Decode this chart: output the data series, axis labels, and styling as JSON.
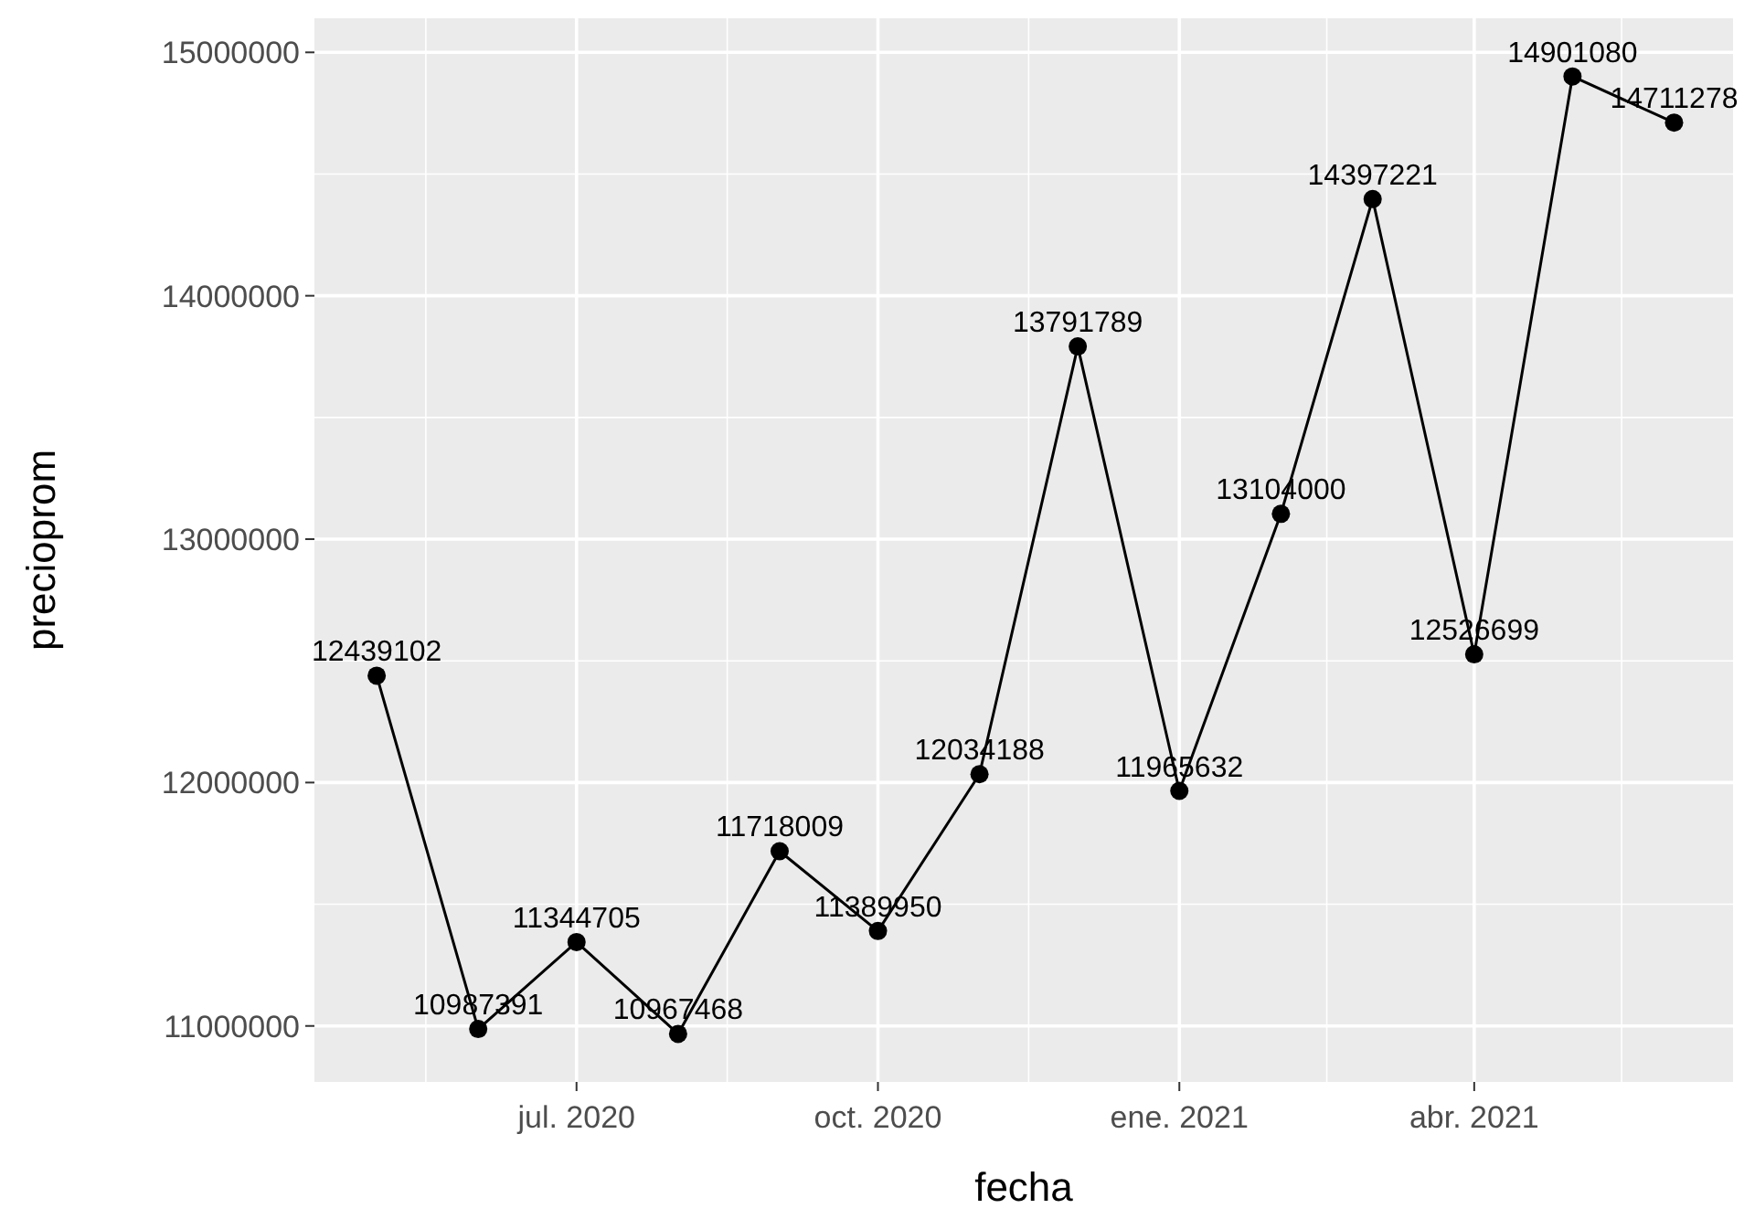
{
  "chart_data": {
    "type": "line",
    "xlabel": "fecha",
    "ylabel": "precioprom",
    "x": [
      "2020-05-01",
      "2020-06-01",
      "2020-07-01",
      "2020-08-01",
      "2020-09-01",
      "2020-10-01",
      "2020-11-01",
      "2020-12-01",
      "2021-01-01",
      "2021-02-01",
      "2021-03-01",
      "2021-04-01",
      "2021-05-01",
      "2021-06-01"
    ],
    "series": [
      {
        "color": "#000000",
        "values": [
          12439102,
          10987391,
          11344705,
          10967468,
          11718009,
          11389950,
          12034188,
          13791789,
          11965632,
          13104000,
          14397221,
          12526699,
          14901080,
          14711278
        ]
      }
    ],
    "xlim": [
      "2020-04-12",
      "2021-06-19"
    ],
    "xticks": [
      {
        "value": "2020-07-01",
        "label": "jul. 2020"
      },
      {
        "value": "2020-10-01",
        "label": "oct. 2020"
      },
      {
        "value": "2021-01-01",
        "label": "ene. 2021"
      },
      {
        "value": "2021-04-01",
        "label": "abr. 2021"
      }
    ],
    "ylim": [
      10770000,
      15140000
    ],
    "yticks": [
      11000000,
      12000000,
      13000000,
      14000000,
      15000000
    ],
    "grid": true,
    "marker": "circle",
    "line_style": "solid",
    "data_labels": true
  }
}
